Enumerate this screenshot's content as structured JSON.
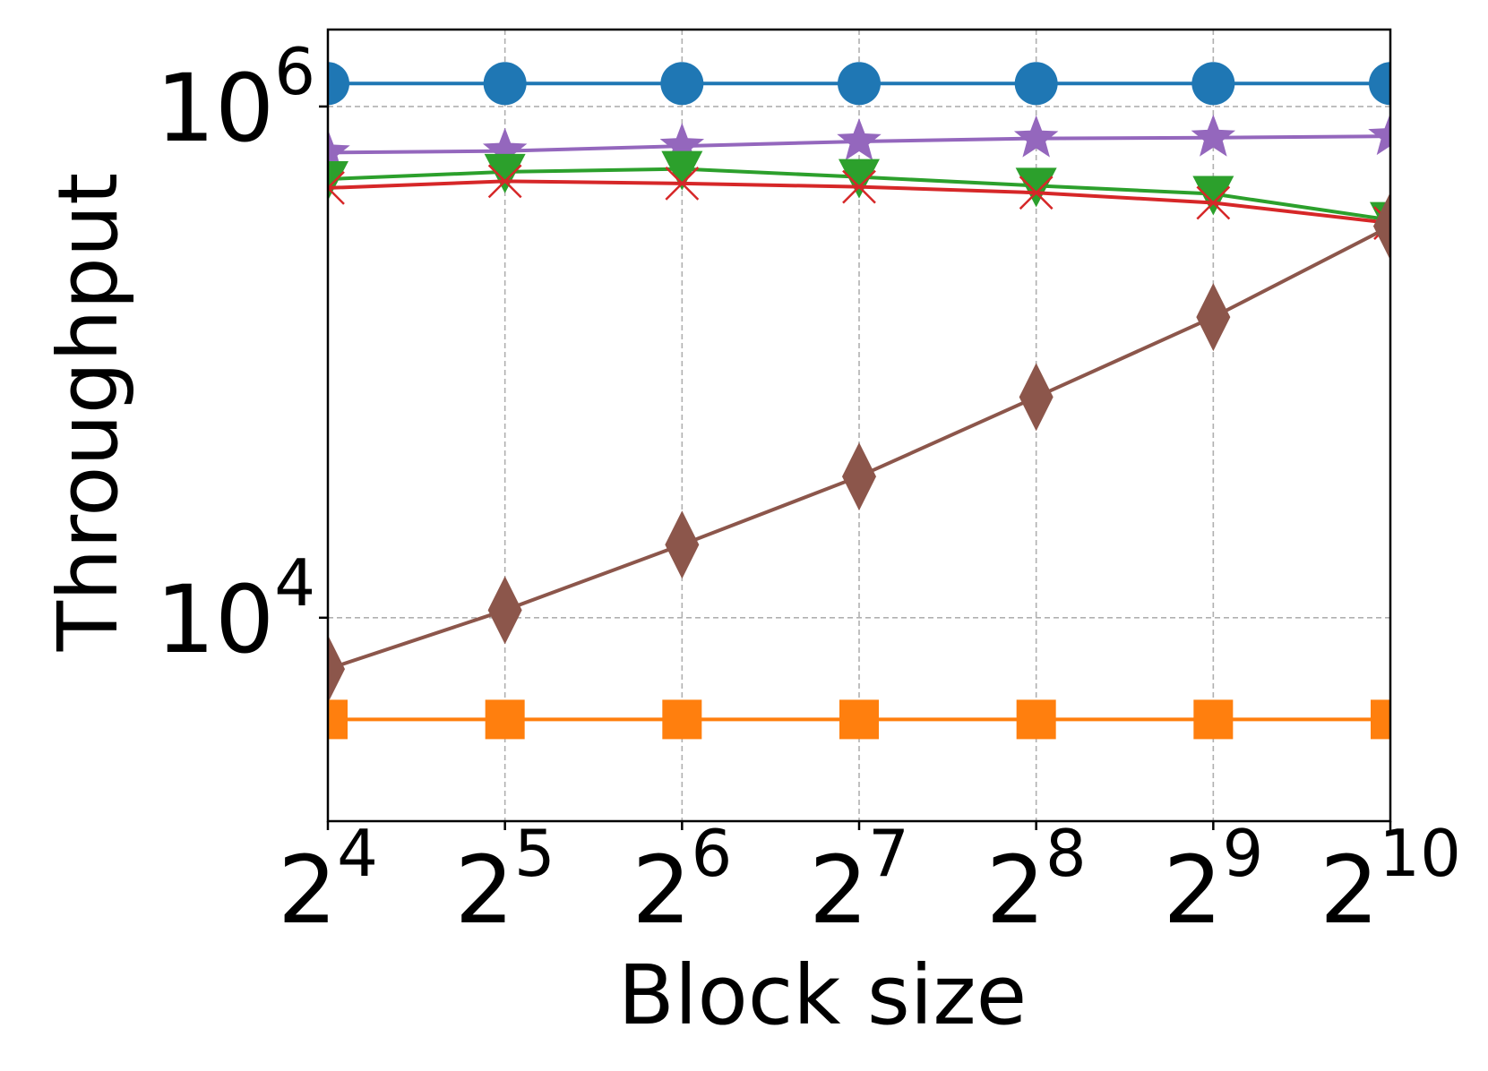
{
  "chart_data": {
    "type": "line",
    "xlabel": "Block size",
    "ylabel": "Throughput",
    "x_scale": "log2",
    "y_scale": "log10",
    "x": [
      16,
      32,
      64,
      128,
      256,
      512,
      1024
    ],
    "x_ticks": [
      {
        "base": "2",
        "exp": "4",
        "value": 16
      },
      {
        "base": "2",
        "exp": "5",
        "value": 32
      },
      {
        "base": "2",
        "exp": "6",
        "value": 64
      },
      {
        "base": "2",
        "exp": "7",
        "value": 128
      },
      {
        "base": "2",
        "exp": "8",
        "value": 256
      },
      {
        "base": "2",
        "exp": "9",
        "value": 512
      },
      {
        "base": "2",
        "exp": "10",
        "value": 1024
      }
    ],
    "y_ticks": [
      {
        "base": "10",
        "exp": "4",
        "value": 10000
      },
      {
        "base": "10",
        "exp": "6",
        "value": 1000000
      }
    ],
    "xlim": [
      16,
      1024
    ],
    "ylim": [
      1600,
      2000000
    ],
    "grid": true,
    "legend": "none",
    "series": [
      {
        "color": "#1f77b4",
        "marker": "circle",
        "values": [
          1230000,
          1230000,
          1230000,
          1230000,
          1230000,
          1230000,
          1230000
        ]
      },
      {
        "color": "#9467bd",
        "marker": "star",
        "values": [
          660000,
          670000,
          700000,
          730000,
          750000,
          755000,
          765000
        ]
      },
      {
        "color": "#2ca02c",
        "marker": "triangle-down",
        "values": [
          520000,
          555000,
          570000,
          530000,
          490000,
          455000,
          360000
        ]
      },
      {
        "color": "#d62728",
        "marker": "x",
        "values": [
          480000,
          510000,
          500000,
          485000,
          460000,
          420000,
          350000
        ]
      },
      {
        "color": "#8c564b",
        "marker": "diamond",
        "values": [
          6300,
          10700,
          19300,
          35700,
          73000,
          150000,
          340000
        ]
      },
      {
        "color": "#ff7f0e",
        "marker": "square",
        "values": [
          4000,
          4000,
          4000,
          4000,
          4000,
          4000,
          4000
        ]
      }
    ]
  }
}
